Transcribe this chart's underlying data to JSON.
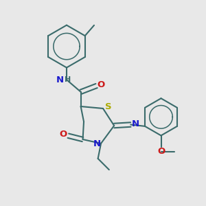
{
  "bg_color": "#e8e8e8",
  "bond_color": "#3a6b6b",
  "bond_width": 1.5,
  "atom_colors": {
    "N": "#1a1acc",
    "O": "#cc1a1a",
    "S": "#aaaa00",
    "H": "#3a6b6b",
    "C": "#3a6b6b"
  },
  "font_size": 9.5
}
